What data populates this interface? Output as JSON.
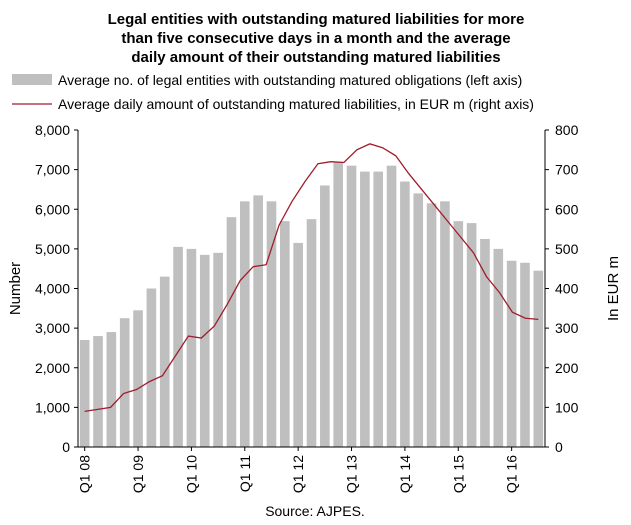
{
  "chart_data": {
    "type": "bar",
    "title_lines": [
      "Legal entities with outstanding matured liabilities for more",
      "than five consecutive days in a month and the average",
      "daily amount of their outstanding matured liabilities"
    ],
    "legend": [
      "Average no. of legal entities with outstanding matured obligations (left axis)",
      "Average daily amount of outstanding matured liabilities, in EUR m (right axis)"
    ],
    "ylabel": "Number",
    "y2label": "In EUR m",
    "source": "Source: AJPES.",
    "ylim": [
      0,
      8000
    ],
    "y2lim": [
      0,
      800
    ],
    "y_ticks": [
      "0",
      "1,000",
      "2,000",
      "3,000",
      "4,000",
      "5,000",
      "6,000",
      "7,000",
      "8,000"
    ],
    "y2_ticks": [
      "0",
      "100",
      "200",
      "300",
      "400",
      "500",
      "600",
      "700",
      "800"
    ],
    "x_tick_labels": [
      "Q1 08",
      "Q1 09",
      "Q1 10",
      "Q1 11",
      "Q1 12",
      "Q1 13",
      "Q1 14",
      "Q1 15",
      "Q1 16"
    ],
    "x_tick_start_index": 0,
    "x_tick_step": 4,
    "series": [
      {
        "type": "bar",
        "axis": "left",
        "values": [
          2700,
          2800,
          2900,
          3250,
          3450,
          4000,
          4300,
          5050,
          5000,
          4850,
          4900,
          5800,
          6200,
          6350,
          6200,
          5700,
          5150,
          5750,
          6600,
          7200,
          7100,
          6950,
          6950,
          7100,
          6700,
          6400,
          6150,
          6200,
          5700,
          5650,
          5250,
          5000,
          4700,
          4650,
          4450
        ]
      },
      {
        "type": "line",
        "axis": "right",
        "values": [
          90,
          95,
          100,
          135,
          145,
          165,
          180,
          230,
          280,
          275,
          305,
          360,
          420,
          455,
          460,
          560,
          620,
          670,
          715,
          720,
          718,
          750,
          765,
          755,
          735,
          690,
          650,
          610,
          570,
          530,
          490,
          430,
          390,
          340,
          325,
          322
        ]
      }
    ],
    "colors": {
      "bar": "#bfbfbf",
      "line": "#a01c2e",
      "axis": "#000000"
    },
    "grid": false
  }
}
